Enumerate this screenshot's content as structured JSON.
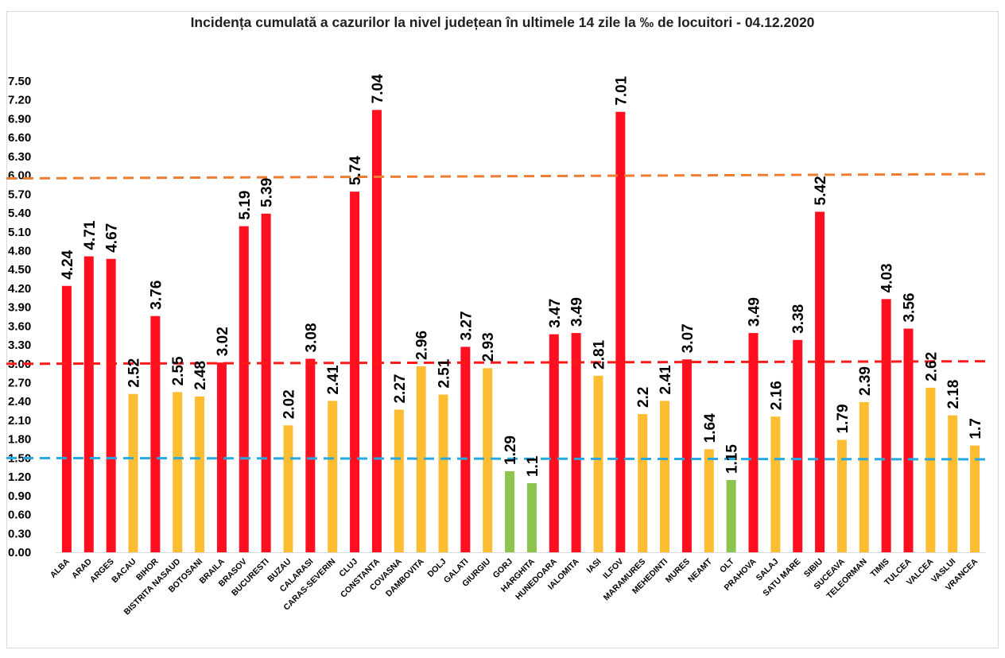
{
  "chart_data": {
    "type": "bar",
    "title": "Incidența cumulată a cazurilor la nivel județean în ultimele 14 zile la ‰ de locuitori - 04.12.2020",
    "xlabel": "",
    "ylabel": "",
    "ylim": [
      0,
      7.5
    ],
    "yticks": [
      "0.00",
      "0.30",
      "0.60",
      "0.90",
      "1.20",
      "1.50",
      "1.80",
      "2.10",
      "2.40",
      "2.70",
      "3.00",
      "3.30",
      "3.60",
      "3.90",
      "4.20",
      "4.50",
      "4.80",
      "5.10",
      "5.40",
      "5.70",
      "6.00",
      "6.30",
      "6.60",
      "6.90",
      "7.20",
      "7.50"
    ],
    "grid": false,
    "legend": "none",
    "categories": [
      "ALBA",
      "ARAD",
      "ARGES",
      "BACAU",
      "BIHOR",
      "BISTRITA NASAUD",
      "BOTOSANI",
      "BRAILA",
      "BRASOV",
      "BUCURESTI",
      "BUZAU",
      "CALARASI",
      "CARAS-SEVERIN",
      "CLUJ",
      "CONSTANTA",
      "COVASNA",
      "DAMBOVITA",
      "DOLJ",
      "GALATI",
      "GIURGIU",
      "GORJ",
      "HARGHITA",
      "HUNEDOARA",
      "IALOMITA",
      "IASI",
      "ILFOV",
      "MARAMURES",
      "MEHEDINTI",
      "MURES",
      "NEAMT",
      "OLT",
      "PRAHOVA",
      "SALAJ",
      "SATU MARE",
      "SIBIU",
      "SUCEAVA",
      "TELEORMAN",
      "TIMIS",
      "TULCEA",
      "VALCEA",
      "VASLUI",
      "VRANCEA"
    ],
    "values": [
      4.24,
      4.71,
      4.67,
      2.52,
      3.76,
      2.55,
      2.48,
      3.02,
      5.19,
      5.39,
      2.02,
      3.08,
      2.41,
      5.74,
      7.04,
      2.27,
      2.96,
      2.51,
      3.27,
      2.93,
      1.29,
      1.1,
      3.47,
      3.49,
      2.81,
      7.01,
      2.2,
      2.41,
      3.07,
      1.64,
      1.15,
      3.49,
      2.16,
      3.38,
      5.42,
      1.79,
      2.39,
      4.03,
      3.56,
      2.62,
      2.18,
      1.7
    ],
    "data_labels": [
      "4.24",
      "4.71",
      "4.67",
      "2.52",
      "3.76",
      "2.55",
      "2.48",
      "3.02",
      "5.19",
      "5.39",
      "2.02",
      "3.08",
      "2.41",
      "5.74",
      "7.04",
      "2.27",
      "2.96",
      "2.51",
      "3.27",
      "2.93",
      "1.29",
      "1.1",
      "3.47",
      "3.49",
      "2.81",
      "7.01",
      "2.2",
      "2.41",
      "3.07",
      "1.64",
      "1.15",
      "3.49",
      "2.16",
      "3.38",
      "5.42",
      "1.79",
      "2.39",
      "4.03",
      "3.56",
      "2.62",
      "2.18",
      "1.7"
    ],
    "bar_colors": {
      "high": "#ff0f1f",
      "medium": "#fcbd32",
      "low": "#8cc44e"
    },
    "color_thresholds": {
      "low_below": 1.5,
      "high_from": 3.0
    },
    "reference_lines": [
      {
        "value_start": 5.95,
        "value_end": 6.02,
        "color": "#ed7d31"
      },
      {
        "value_start": 3.0,
        "value_end": 3.04,
        "color": "#ff1a1a"
      },
      {
        "value_start": 1.5,
        "value_end": 1.48,
        "color": "#26a9e0"
      }
    ]
  }
}
